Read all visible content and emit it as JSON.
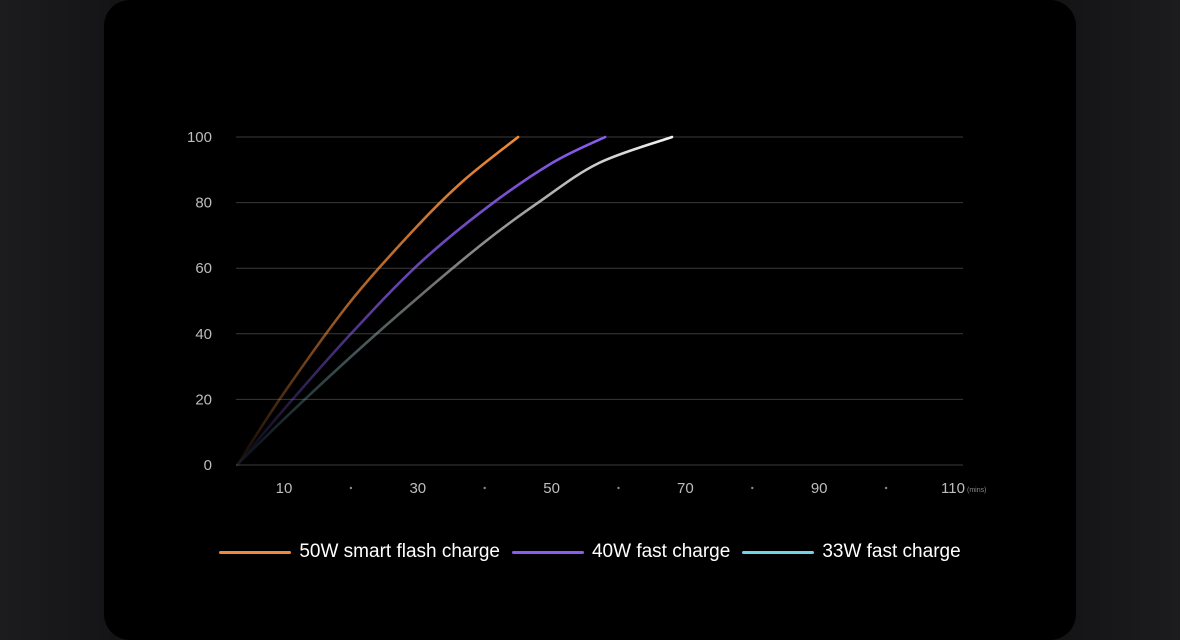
{
  "chart_data": {
    "type": "line",
    "y_ticks": [
      "0",
      "20",
      "40",
      "60",
      "80",
      "100"
    ],
    "ylim": [
      0,
      100
    ],
    "x_ticks": [
      "10",
      "30",
      "50",
      "70",
      "90",
      "110"
    ],
    "x_unit": "(mins)",
    "xlim": [
      3,
      110
    ],
    "grid": true,
    "legend_position": "bottom",
    "series": [
      {
        "name": "50W smart flash charge",
        "color": "#f08a3a",
        "x": [
          3,
          10,
          20,
          30,
          37,
          45
        ],
        "y": [
          0,
          22,
          50,
          73,
          87,
          100
        ]
      },
      {
        "name": "40W fast charge",
        "color": "#8a5cf0",
        "x": [
          3,
          10,
          20,
          30,
          40,
          50,
          58
        ],
        "y": [
          0,
          17,
          40,
          61,
          78,
          92,
          100
        ]
      },
      {
        "name": "33W fast charge",
        "color": "#6fd4e6",
        "x": [
          3,
          10,
          20,
          30,
          40,
          48,
          57,
          68
        ],
        "y": [
          0,
          14,
          33,
          51,
          68,
          80,
          92,
          100
        ]
      }
    ]
  }
}
